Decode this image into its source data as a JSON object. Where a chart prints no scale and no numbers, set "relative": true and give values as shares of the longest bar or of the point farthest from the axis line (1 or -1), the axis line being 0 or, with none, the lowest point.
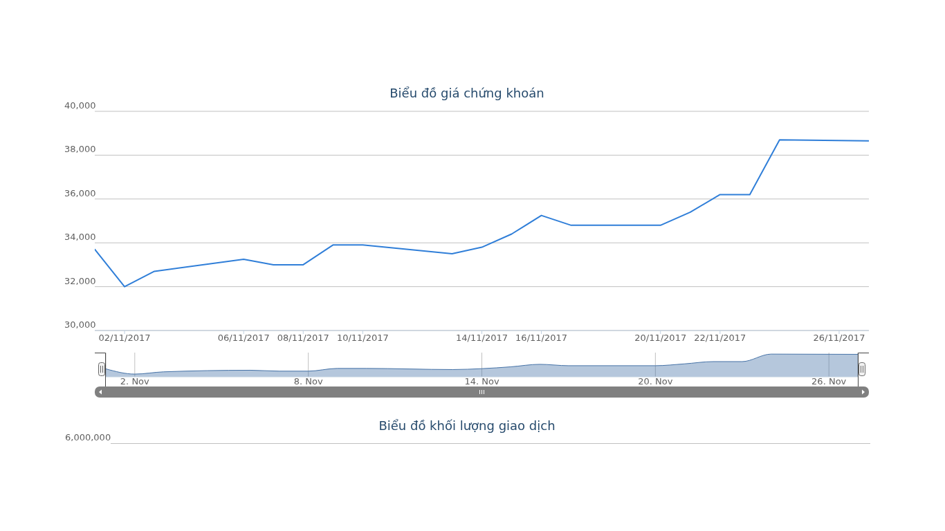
{
  "chart_data": [
    {
      "type": "line",
      "title": "Biểu đồ giá chứng khoán",
      "x": [
        "2017-11-01",
        "2017-11-02",
        "2017-11-03",
        "2017-11-06",
        "2017-11-07",
        "2017-11-08",
        "2017-11-09",
        "2017-11-10",
        "2017-11-13",
        "2017-11-14",
        "2017-11-15",
        "2017-11-16",
        "2017-11-17",
        "2017-11-20",
        "2017-11-21",
        "2017-11-22",
        "2017-11-23",
        "2017-11-24",
        "2017-11-27"
      ],
      "values": [
        33700,
        32000,
        32700,
        33250,
        33000,
        33000,
        33900,
        33900,
        33500,
        33800,
        34400,
        35250,
        34800,
        34800,
        35400,
        36200,
        36200,
        38700,
        38650
      ],
      "color": "#2f7ed8",
      "xlim": [
        "2017-11-01",
        "2017-11-27"
      ],
      "xticks": [
        {
          "value": "2017-11-02",
          "label": "02/11/2017"
        },
        {
          "value": "2017-11-06",
          "label": "06/11/2017"
        },
        {
          "value": "2017-11-08",
          "label": "08/11/2017"
        },
        {
          "value": "2017-11-10",
          "label": "10/11/2017"
        },
        {
          "value": "2017-11-14",
          "label": "14/11/2017"
        },
        {
          "value": "2017-11-16",
          "label": "16/11/2017"
        },
        {
          "value": "2017-11-20",
          "label": "20/11/2017"
        },
        {
          "value": "2017-11-22",
          "label": "22/11/2017"
        },
        {
          "value": "2017-11-26",
          "label": "26/11/2017"
        }
      ],
      "ylim": [
        30000,
        40000
      ],
      "yticks": [
        {
          "value": 30000,
          "label": "30,000"
        },
        {
          "value": 32000,
          "label": "32,000"
        },
        {
          "value": 34000,
          "label": "34,000"
        },
        {
          "value": 36000,
          "label": "36,000"
        },
        {
          "value": 38000,
          "label": "38,000"
        },
        {
          "value": 40000,
          "label": "40,000"
        }
      ],
      "grid": "y"
    },
    {
      "type": "area",
      "x": [
        "2017-11-01",
        "2017-11-02",
        "2017-11-03",
        "2017-11-06",
        "2017-11-07",
        "2017-11-08",
        "2017-11-09",
        "2017-11-10",
        "2017-11-13",
        "2017-11-14",
        "2017-11-15",
        "2017-11-16",
        "2017-11-17",
        "2017-11-20",
        "2017-11-21",
        "2017-11-22",
        "2017-11-23",
        "2017-11-24",
        "2017-11-27"
      ],
      "values": [
        0.35,
        0.12,
        0.22,
        0.29,
        0.25,
        0.25,
        0.37,
        0.37,
        0.32,
        0.36,
        0.44,
        0.55,
        0.49,
        0.49,
        0.57,
        0.67,
        0.67,
        1.0,
        0.99
      ],
      "relative": true,
      "color": "#4572a7",
      "xlim": [
        "2017-11-01",
        "2017-11-27"
      ],
      "xticks": [
        {
          "value": "2017-11-02",
          "label": "2. Nov"
        },
        {
          "value": "2017-11-08",
          "label": "8. Nov"
        },
        {
          "value": "2017-11-14",
          "label": "14. Nov"
        },
        {
          "value": "2017-11-20",
          "label": "20. Nov"
        },
        {
          "value": "2017-11-26",
          "label": "26. Nov"
        }
      ],
      "grid": "x"
    },
    {
      "type": "other",
      "title": "Biểu đồ khối lượng giao dịch",
      "annotations": [
        "6,000,000"
      ]
    }
  ]
}
